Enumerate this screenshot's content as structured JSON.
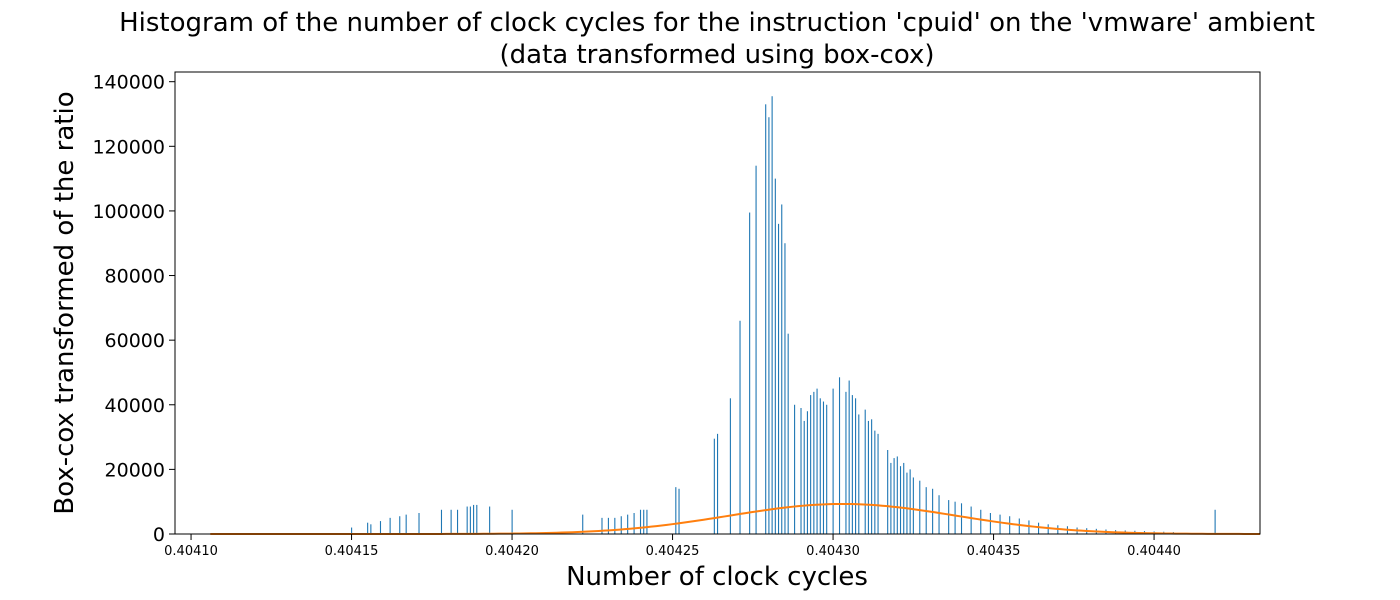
{
  "chart_data": {
    "type": "bar",
    "title": "Histogram of the number of clock cycles for the instruction 'cpuid' on the 'vmware' ambient",
    "subtitle": "(data transformed using box-cox)",
    "xlabel": "Number of clock cycles",
    "ylabel": "Box-cox transformed of the ratio",
    "xlim": [
      0.404095,
      0.404433
    ],
    "ylim": [
      0,
      143000
    ],
    "x_ticks": [
      0.4041,
      0.40415,
      0.4042,
      0.40425,
      0.4043,
      0.40435,
      0.4044
    ],
    "x_tick_labels": [
      "0.40410",
      "0.40415",
      "0.40420",
      "0.40425",
      "0.40430",
      "0.40435",
      "0.40440"
    ],
    "y_ticks": [
      0,
      20000,
      40000,
      60000,
      80000,
      100000,
      120000,
      140000
    ],
    "y_tick_labels": [
      "0",
      "20000",
      "40000",
      "60000",
      "80000",
      "100000",
      "120000",
      "140000"
    ],
    "grid": false,
    "colors": {
      "bars": "#1f77b4",
      "fit_curve": "#ff7f0e"
    },
    "series": [
      {
        "type": "bar",
        "x": [
          0.40415,
          0.404155,
          0.404156,
          0.404159,
          0.404162,
          0.404165,
          0.404167,
          0.404171,
          0.404178,
          0.404181,
          0.404183,
          0.404186,
          0.404187,
          0.404188,
          0.404189,
          0.404193,
          0.4042,
          0.404222,
          0.404228,
          0.40423,
          0.404232,
          0.404234,
          0.404236,
          0.404238,
          0.40424,
          0.404241,
          0.404242,
          0.404251,
          0.404252,
          0.404263,
          0.404264,
          0.404268,
          0.404271,
          0.404274,
          0.404276,
          0.404279,
          0.40428,
          0.404281,
          0.404282,
          0.404283,
          0.404284,
          0.404285,
          0.404286,
          0.404288,
          0.40429,
          0.404291,
          0.404292,
          0.404293,
          0.404294,
          0.404295,
          0.404296,
          0.404297,
          0.404298,
          0.4043,
          0.404302,
          0.404304,
          0.404305,
          0.404306,
          0.404307,
          0.404308,
          0.40431,
          0.404311,
          0.404312,
          0.404313,
          0.404314,
          0.404317,
          0.404318,
          0.404319,
          0.40432,
          0.404321,
          0.404322,
          0.404323,
          0.404324,
          0.404325,
          0.404327,
          0.404329,
          0.404331,
          0.404333,
          0.404336,
          0.404338,
          0.40434,
          0.404343,
          0.404346,
          0.404349,
          0.404352,
          0.404355,
          0.404358,
          0.404361,
          0.404364,
          0.404367,
          0.40437,
          0.404373,
          0.404376,
          0.404379,
          0.404382,
          0.404385,
          0.404388,
          0.404391,
          0.404394,
          0.404397,
          0.4044,
          0.404403,
          0.404406,
          0.404419
        ],
        "values": [
          2000,
          3500,
          3000,
          4000,
          5000,
          5500,
          6000,
          6500,
          7500,
          7500,
          7500,
          8500,
          8500,
          9000,
          9000,
          8500,
          7500,
          6000,
          5000,
          5000,
          5000,
          5500,
          6000,
          6500,
          7500,
          7500,
          7500,
          14500,
          14000,
          29500,
          31000,
          42000,
          66000,
          99500,
          114000,
          133000,
          129000,
          135500,
          110000,
          96000,
          102000,
          90000,
          62000,
          40000,
          39000,
          35000,
          38000,
          43000,
          44000,
          45000,
          42000,
          41000,
          40000,
          45000,
          48500,
          44000,
          47500,
          43000,
          42000,
          37000,
          38500,
          35000,
          35500,
          32000,
          31000,
          26000,
          22000,
          23500,
          24000,
          21000,
          22000,
          19000,
          20000,
          17500,
          16500,
          14500,
          14000,
          12000,
          10500,
          10000,
          9500,
          8500,
          7500,
          6500,
          6000,
          5500,
          4800,
          4200,
          3500,
          3000,
          2700,
          2400,
          2000,
          1800,
          1600,
          1400,
          1200,
          1100,
          1000,
          900,
          800,
          700,
          600,
          7500
        ]
      },
      {
        "type": "line",
        "description_of_fit": "normal fit",
        "mean": 0.404303,
        "std": 3.55e-05,
        "peak": 9300,
        "x_range": [
          0.404106,
          0.404433
        ]
      }
    ]
  }
}
